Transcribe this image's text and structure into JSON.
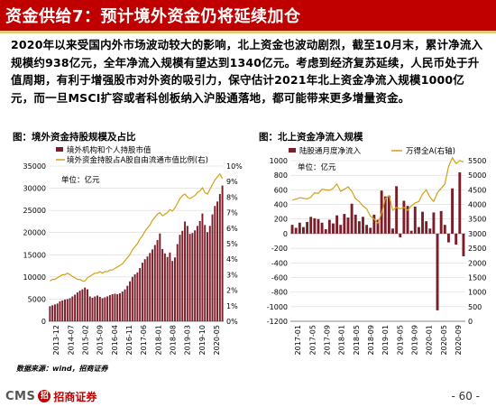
{
  "page": {
    "title": "资金供给7：预计境外资金仍将延续加仓",
    "body": "2020年以来受国内外市场波动较大的影响，北上资金也波动剧烈，截至10月末，累计净流入规模约938亿元，全年净流入规模有望达到1340亿元。考虑到经济复苏延续，人民币处于升值周期，有利于增强股市对外资的吸引力，保守估计2021年北上资金净流入规模1000亿元，而一旦MSCI扩容或者科创板纳入沪股通落地，都可能带来更多增量资金。",
    "source": "数据来源：wind，招商证券",
    "page_number": "- 60 -",
    "logo_cms": "CMS",
    "logo_mark": "招",
    "logo_name": "招商证券"
  },
  "colors": {
    "brand_red": "#c00000",
    "bar": "#7b1e2a",
    "line": "#d4a017",
    "grid": "#d9d9d9"
  },
  "chart_data": [
    {
      "type": "bar",
      "title": "图：境外资金持股规模及占比",
      "unit_label": "单位：亿元",
      "legend": [
        "境外机构和个人持股市值",
        "境外资金持股占A股自由流通市值比例(右)"
      ],
      "left_axis": {
        "ylim": [
          0,
          35000
        ],
        "ticks": [
          "0",
          "5000",
          "10000",
          "15000",
          "20000",
          "25000",
          "30000",
          "35000"
        ]
      },
      "right_axis": {
        "ylim": [
          0,
          10
        ],
        "ticks": [
          "0%",
          "1%",
          "2%",
          "3%",
          "4%",
          "5%",
          "6%",
          "7%",
          "8%",
          "9%",
          "10%"
        ]
      },
      "x_ticks": [
        "2013-12",
        "2014-07",
        "2015-02",
        "2015-09",
        "2016-04",
        "2016-11",
        "2017-06",
        "2018-01",
        "2018-08",
        "2019-03",
        "2019-10",
        "2020-05"
      ],
      "series": [
        {
          "name": "境外机构和个人持股市值",
          "type": "bar",
          "axis": "left",
          "values": [
            3400,
            3600,
            3800,
            4000,
            4500,
            4700,
            4900,
            5000,
            5200,
            5600,
            6000,
            6500,
            6900,
            7200,
            7600,
            7200,
            5600,
            5300,
            5600,
            5800,
            5500,
            5200,
            5400,
            5600,
            5900,
            6100,
            6200,
            6100,
            6300,
            6700,
            7200,
            8000,
            9000,
            10000,
            10600,
            11000,
            12000,
            13200,
            14000,
            14600,
            15400,
            16200,
            17200,
            18300,
            19800,
            16300,
            15300,
            14500,
            15500,
            13600,
            14400,
            17400,
            19500,
            20400,
            22500,
            21500,
            19700,
            19900,
            20500,
            21500,
            22600,
            24300,
            21700,
            20100,
            21500,
            24100,
            26000,
            27000,
            28700,
            30600
          ]
        },
        {
          "name": "境外资金持股占A股自由流通市值比例(右)",
          "type": "line",
          "axis": "right",
          "values": [
            2.6,
            2.7,
            2.7,
            2.8,
            2.9,
            3.0,
            3.0,
            3.1,
            3.0,
            2.9,
            2.8,
            2.7,
            2.7,
            2.6,
            2.6,
            2.8,
            2.9,
            3.0,
            3.1,
            3.1,
            3.2,
            3.1,
            3.2,
            3.2,
            3.3,
            3.3,
            3.4,
            3.5,
            3.6,
            3.7,
            3.9,
            4.1,
            4.3,
            4.6,
            4.8,
            5.0,
            5.3,
            5.5,
            5.8,
            6.0,
            6.2,
            6.5,
            6.7,
            6.9,
            7.0,
            6.8,
            6.9,
            7.0,
            7.2,
            7.1,
            7.3,
            7.6,
            7.9,
            8.1,
            8.2,
            8.0,
            7.9,
            8.0,
            8.1,
            8.3,
            8.4,
            8.6,
            8.3,
            8.2,
            8.5,
            8.8,
            9.1,
            9.3,
            9.5,
            9.2
          ]
        }
      ]
    },
    {
      "type": "bar",
      "title": "图：北上资金净流入规模",
      "unit_label": "单位：亿元",
      "legend": [
        "陆股通月度净流入",
        "万得全A(右轴)"
      ],
      "left_axis": {
        "ylim": [
          -1200,
          1000
        ],
        "ticks": [
          "-1200",
          "-1000",
          "-800",
          "-600",
          "-400",
          "-200",
          "0",
          "200",
          "400",
          "600",
          "800",
          "1000"
        ]
      },
      "right_axis": {
        "ylim": [
          0,
          5500
        ],
        "ticks": [
          "0",
          "500",
          "1000",
          "1500",
          "2000",
          "2500",
          "3000",
          "3500",
          "4000",
          "4500",
          "5000",
          "5500"
        ]
      },
      "x_ticks": [
        "2017-01",
        "2017-05",
        "2017-09",
        "2018-01",
        "2018-05",
        "2018-09",
        "2019-01",
        "2019-05",
        "2019-09",
        "2020-01",
        "2020-05",
        "2020-09"
      ],
      "series": [
        {
          "name": "陆股通月度净流入",
          "type": "bar",
          "axis": "left",
          "values": [
            120,
            80,
            150,
            90,
            160,
            230,
            210,
            200,
            150,
            60,
            190,
            140,
            250,
            120,
            270,
            220,
            410,
            260,
            170,
            230,
            120,
            80,
            260,
            190,
            590,
            510,
            520,
            70,
            650,
            -50,
            450,
            380,
            40,
            370,
            90,
            300,
            170,
            70,
            290,
            -1050,
            310,
            120,
            -120,
            620,
            -150,
            840,
            -310
          ]
        },
        {
          "name": "万得全A(右轴)",
          "type": "line",
          "axis": "right",
          "values": [
            4150,
            4180,
            4230,
            4210,
            4190,
            4250,
            4400,
            4380,
            4520,
            4500,
            4480,
            4550,
            4700,
            4450,
            4520,
            4600,
            4450,
            4200,
            4100,
            3950,
            3850,
            3600,
            3500,
            3350,
            3700,
            4200,
            4300,
            3800,
            3900,
            3850,
            3900,
            3800,
            3950,
            4050,
            4100,
            4350,
            4500,
            4250,
            4100,
            4400,
            4550,
            4700,
            5300,
            5600,
            5400,
            5500,
            5450
          ]
        }
      ]
    }
  ]
}
